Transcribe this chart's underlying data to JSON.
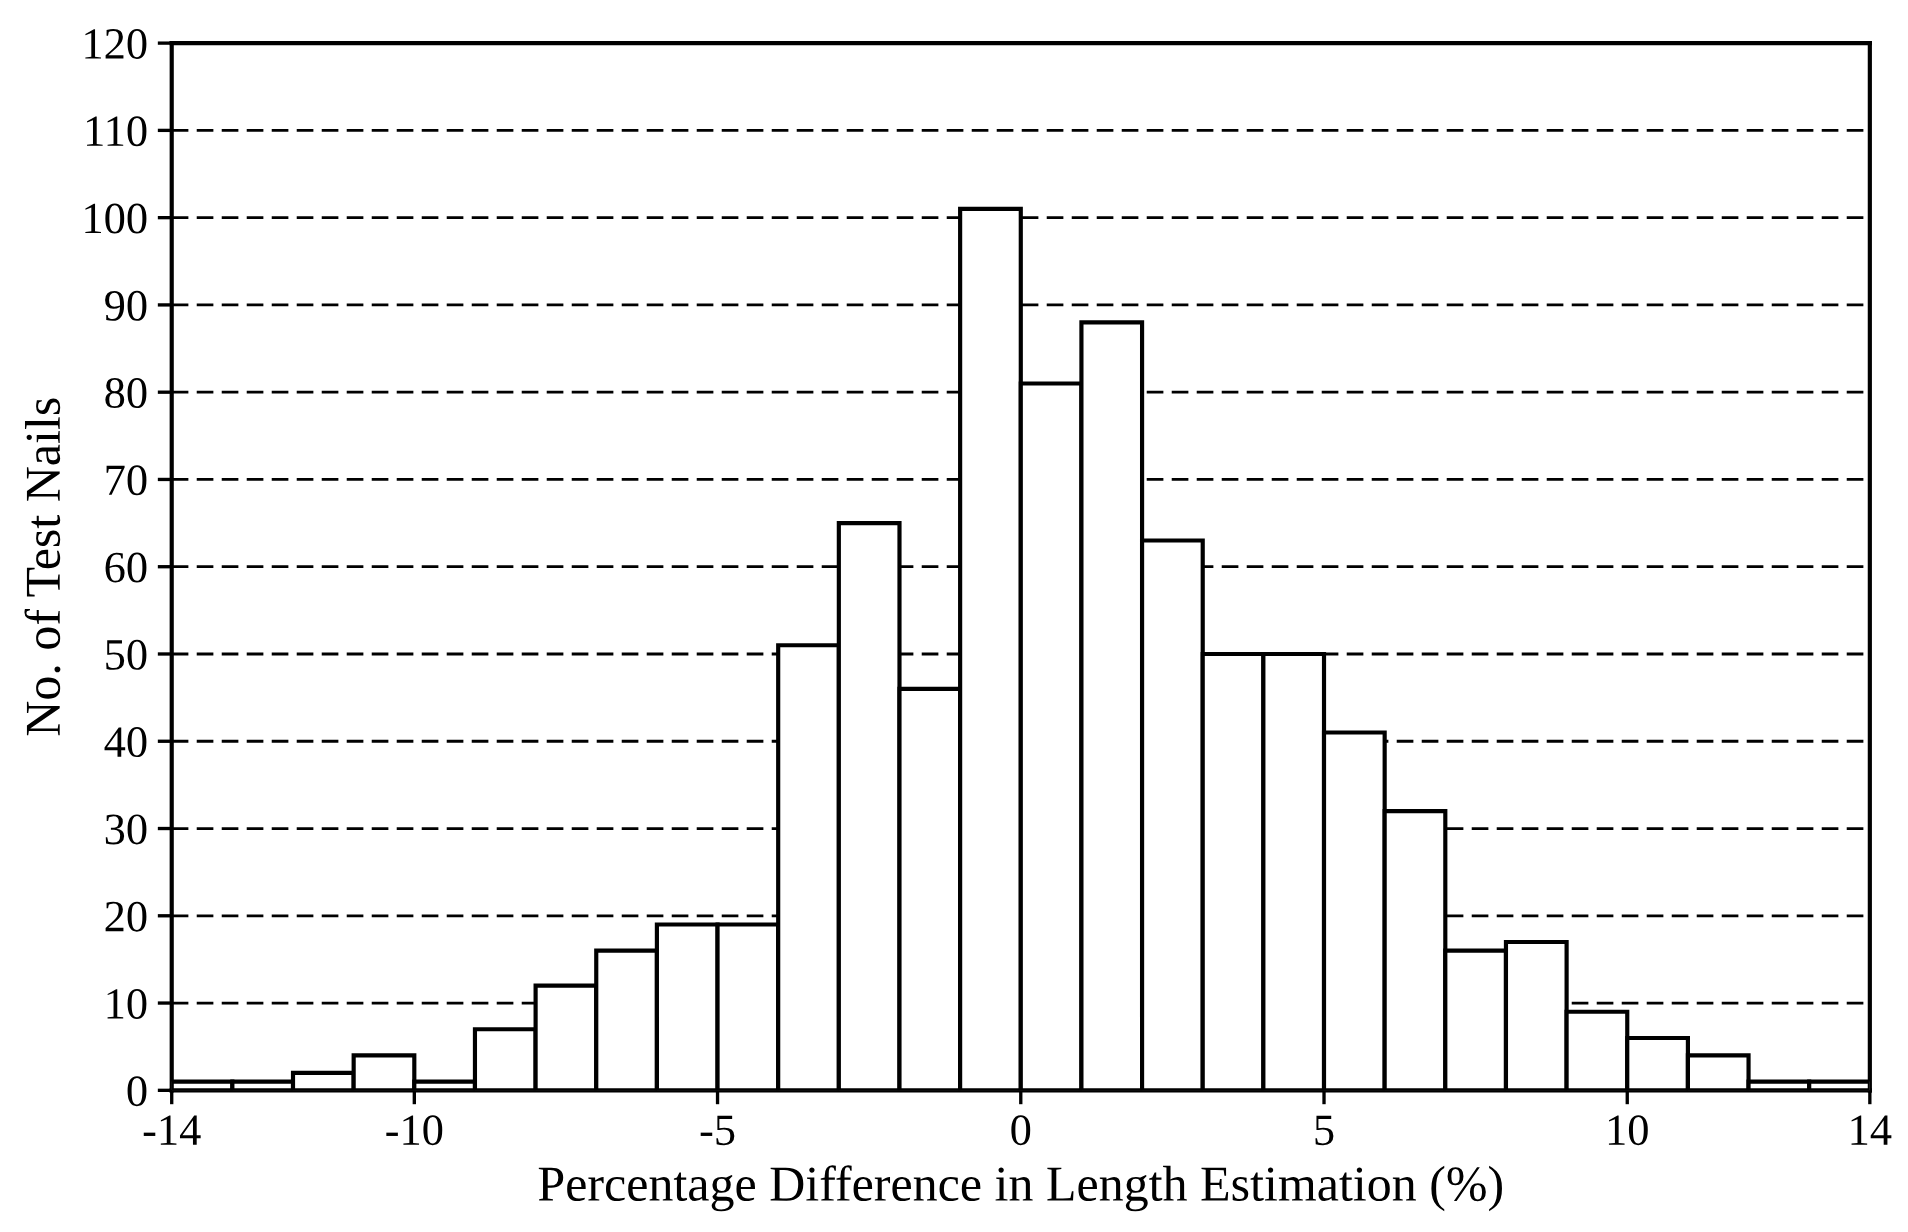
{
  "chart_data": {
    "type": "histogram",
    "xlabel": "Percentage Difference in Length Estimation (%)",
    "ylabel": "No. of Test Nails",
    "bins": [
      -14,
      -13,
      -12,
      -11,
      -10,
      -9,
      -8,
      -7,
      -6,
      -5,
      -4,
      -3,
      -2,
      -1,
      0,
      1,
      2,
      3,
      4,
      5,
      6,
      7,
      8,
      9,
      10,
      11,
      12,
      13,
      14
    ],
    "values": [
      1,
      1,
      2,
      4,
      1,
      7,
      12,
      16,
      19,
      19,
      51,
      65,
      46,
      101,
      81,
      88,
      63,
      50,
      50,
      41,
      32,
      16,
      17,
      9,
      6,
      4,
      1,
      1
    ],
    "color": "#ffffff",
    "xlim": [
      -14,
      14
    ],
    "xticks": [
      -14,
      -10,
      -5,
      0,
      5,
      10,
      14
    ],
    "ylim": [
      0,
      120
    ],
    "yticks": [
      0,
      10,
      20,
      30,
      40,
      50,
      60,
      70,
      80,
      90,
      100,
      110,
      120
    ],
    "grid": "y"
  }
}
